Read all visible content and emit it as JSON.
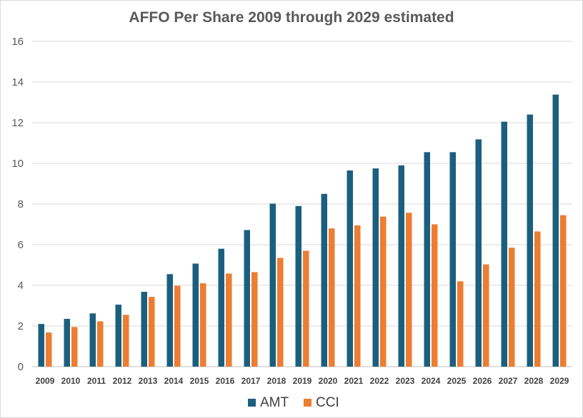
{
  "chart_data": {
    "type": "bar",
    "title": "AFFO Per Share 2009 through 2029 estimated",
    "xlabel": "",
    "ylabel": "",
    "ylim": [
      0,
      16
    ],
    "yticks": [
      0,
      2,
      4,
      6,
      8,
      10,
      12,
      14,
      16
    ],
    "grid": true,
    "legend": "bottom",
    "categories": [
      "2009",
      "2010",
      "2011",
      "2012",
      "2013",
      "2014",
      "2015",
      "2016",
      "2017",
      "2018",
      "2019",
      "2020",
      "2021",
      "2022",
      "2023",
      "2024",
      "2025",
      "2026",
      "2027",
      "2028",
      "2029"
    ],
    "series": [
      {
        "name": "AMT",
        "color": "#1b5f7e",
        "values": [
          2.1,
          2.35,
          2.62,
          3.05,
          3.68,
          4.55,
          5.07,
          5.8,
          6.72,
          8.02,
          7.9,
          8.5,
          9.65,
          9.75,
          9.9,
          10.55,
          10.55,
          11.18,
          12.05,
          12.4,
          13.38
        ]
      },
      {
        "name": "CCI",
        "color": "#ed7d31",
        "values": [
          1.68,
          1.95,
          2.23,
          2.55,
          3.43,
          3.98,
          4.1,
          4.58,
          4.65,
          5.35,
          5.7,
          6.8,
          6.95,
          7.38,
          7.57,
          7.0,
          4.2,
          5.03,
          5.85,
          6.65,
          7.45
        ]
      }
    ]
  }
}
